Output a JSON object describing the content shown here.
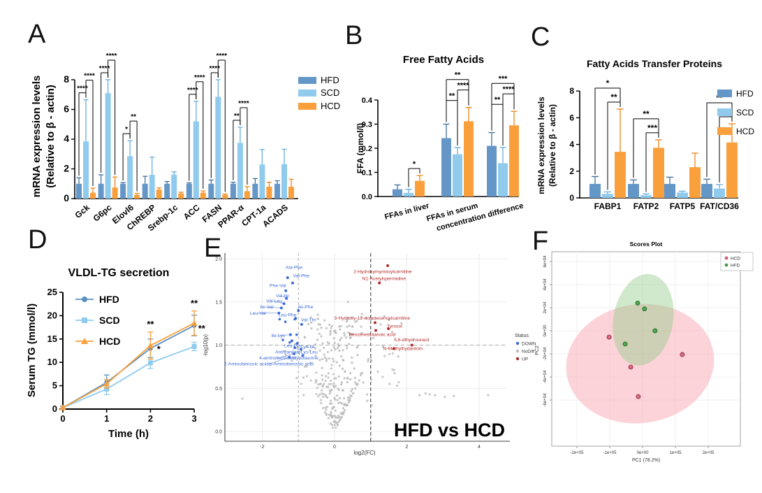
{
  "panels": {
    "a": "A",
    "b": "B",
    "c": "C",
    "d": "D",
    "e": "E",
    "f": "F"
  },
  "chart_data": [
    {
      "panel": "A",
      "type": "bar",
      "title": "",
      "ylabel_lines": [
        "mRNA expression levels",
        "(Relative to β - actin)"
      ],
      "ylim": [
        0,
        8
      ],
      "yticks": [
        "0",
        "2",
        "4",
        "6",
        "8"
      ],
      "ytick_values": [
        0,
        2,
        4,
        6,
        8
      ],
      "categories": [
        "Gck",
        "G6pc",
        "Elovl6",
        "ChREBP",
        "Srebp-1c",
        "ACC",
        "FASN",
        "PPAR-α",
        "CPT-1a",
        "ACADS"
      ],
      "series": [
        {
          "name": "HFD",
          "color": "#6497C7",
          "error_color": "#3E6F9E",
          "values": [
            1,
            1,
            1,
            1,
            1,
            1,
            1,
            1,
            1,
            1
          ],
          "errors": [
            0.4,
            0.6,
            0.08,
            0.5,
            0.15,
            0.06,
            0.25,
            0.1,
            0.35,
            0.2
          ]
        },
        {
          "name": "SCD",
          "color": "#90CBEE",
          "error_color": "#66AEDD",
          "values": [
            3.85,
            7.1,
            2.85,
            1.6,
            1.62,
            5.2,
            6.85,
            3.75,
            2.3,
            2.32
          ],
          "errors": [
            2.8,
            0.9,
            1.05,
            1.2,
            0.18,
            1.35,
            1.15,
            1.05,
            1.0,
            1.0
          ]
        },
        {
          "name": "HCD",
          "color": "#F9A03C",
          "error_color": "#EF8418",
          "values": [
            0.4,
            0.75,
            0.25,
            0.6,
            0.35,
            0.4,
            0.25,
            0.5,
            0.8,
            0.8
          ],
          "errors": [
            0.3,
            0.7,
            0.1,
            0.12,
            0.08,
            0.12,
            0.06,
            0.3,
            0.3,
            0.5
          ]
        }
      ],
      "legend": [
        "HFD",
        "SCD",
        "HCD"
      ],
      "significance": [
        {
          "cat": 0,
          "level": 1,
          "a": 0,
          "b": 1,
          "label": "****"
        },
        {
          "cat": 0,
          "level": 2,
          "a": 1,
          "b": 2,
          "label": "****"
        },
        {
          "cat": 1,
          "level": 1,
          "a": 0,
          "b": 1,
          "label": "****"
        },
        {
          "cat": 1,
          "level": 2,
          "a": 1,
          "b": 2,
          "label": "****"
        },
        {
          "cat": 2,
          "level": 1,
          "a": 0,
          "b": 1,
          "label": "*"
        },
        {
          "cat": 2,
          "level": 2,
          "a": 1,
          "b": 2,
          "label": "**"
        },
        {
          "cat": 5,
          "level": 1,
          "a": 0,
          "b": 1,
          "label": "****"
        },
        {
          "cat": 5,
          "level": 2,
          "a": 1,
          "b": 2,
          "label": "****"
        },
        {
          "cat": 6,
          "level": 1,
          "a": 0,
          "b": 1,
          "label": "****"
        },
        {
          "cat": 6,
          "level": 2,
          "a": 1,
          "b": 2,
          "label": "****"
        },
        {
          "cat": 7,
          "level": 1,
          "a": 0,
          "b": 1,
          "label": "**"
        },
        {
          "cat": 7,
          "level": 2,
          "a": 1,
          "b": 2,
          "label": "****"
        }
      ]
    },
    {
      "panel": "B",
      "type": "bar",
      "title": "Free Fatty Acids",
      "ylabel": "FFA (mmol/l)",
      "ylim": [
        0,
        0.4
      ],
      "yticks": [
        "0.0",
        "0.1",
        "0.2",
        "0.3",
        "0.4"
      ],
      "ytick_values": [
        0,
        0.1,
        0.2,
        0.3,
        0.4
      ],
      "categories": [
        "FFAs in liver",
        "FFAs in serum",
        "concentration difference"
      ],
      "series": [
        {
          "name": "HFD",
          "color": "#6497C7",
          "error_color": "#3E6F9E",
          "values": [
            0.03,
            0.242,
            0.21
          ],
          "errors": [
            0.018,
            0.058,
            0.055
          ]
        },
        {
          "name": "SCD",
          "color": "#90CBEE",
          "error_color": "#66AEDD",
          "values": [
            0.015,
            0.175,
            0.138
          ],
          "errors": [
            0.015,
            0.028,
            0.065
          ]
        },
        {
          "name": "HCD",
          "color": "#F9A03C",
          "error_color": "#EF8418",
          "values": [
            0.065,
            0.312,
            0.295
          ],
          "errors": [
            0.022,
            0.057,
            0.058
          ]
        }
      ],
      "significance": [
        {
          "cat": 0,
          "level": 1,
          "a": 1,
          "b": 2,
          "label": "*"
        },
        {
          "cat": 1,
          "level": 1,
          "a": 0,
          "b": 1,
          "label": "**"
        },
        {
          "cat": 1,
          "level": 2,
          "a": 1,
          "b": 2,
          "label": "****"
        },
        {
          "cat": 1,
          "level": 3,
          "a": 0,
          "b": 2,
          "label": "**"
        },
        {
          "cat": 2,
          "level": 1,
          "a": 0,
          "b": 1,
          "label": "**"
        },
        {
          "cat": 2,
          "level": 2,
          "a": 1,
          "b": 2,
          "label": "****"
        },
        {
          "cat": 2,
          "level": 3,
          "a": 0,
          "b": 2,
          "label": "***"
        }
      ]
    },
    {
      "panel": "C",
      "type": "bar",
      "title": "Fatty Acids Transfer Proteins",
      "ylabel_lines": [
        "mRNA expression levels",
        "(Relative to β - actin)"
      ],
      "ylim": [
        0,
        8
      ],
      "yticks": [
        "0",
        "2",
        "4",
        "6",
        "8"
      ],
      "ytick_values": [
        0,
        2,
        4,
        6,
        8
      ],
      "categories": [
        "FABP1",
        "FATP2",
        "FATP5",
        "FAT/CD36"
      ],
      "series": [
        {
          "name": "HFD",
          "color": "#6497C7",
          "error_color": "#3E6F9E",
          "values": [
            1.05,
            1.05,
            1.05,
            1.05
          ],
          "errors": [
            0.55,
            0.3,
            0.5,
            0.35
          ]
        },
        {
          "name": "SCD",
          "color": "#90CBEE",
          "error_color": "#66AEDD",
          "values": [
            0.3,
            0.2,
            0.4,
            0.7
          ],
          "errors": [
            0.15,
            0.1,
            0.1,
            0.3
          ]
        },
        {
          "name": "HCD",
          "color": "#F9A03C",
          "error_color": "#EF8418",
          "values": [
            3.45,
            3.75,
            2.3,
            4.15
          ],
          "errors": [
            3.2,
            0.6,
            1.05,
            1.4
          ]
        }
      ],
      "legend": [
        "HFD",
        "SCD",
        "HCD"
      ],
      "significance": [
        {
          "cat": 0,
          "level": 1,
          "a": 1,
          "b": 2,
          "label": "**"
        },
        {
          "cat": 0,
          "level": 2,
          "a": 0,
          "b": 2,
          "label": "*"
        },
        {
          "cat": 1,
          "level": 1,
          "a": 1,
          "b": 2,
          "label": "***"
        },
        {
          "cat": 1,
          "level": 2,
          "a": 0,
          "b": 2,
          "label": "**"
        },
        {
          "cat": 3,
          "level": 1,
          "a": 1,
          "b": 2,
          "label": "***"
        },
        {
          "cat": 3,
          "level": 2,
          "a": 0,
          "b": 2,
          "label": "**"
        }
      ]
    },
    {
      "panel": "D",
      "type": "line",
      "title": "VLDL-TG secretion",
      "xlabel": "Time (h)",
      "ylabel": "Serum TG (mmol/l)",
      "x": [
        0,
        1,
        2,
        3
      ],
      "xticks": [
        "0",
        "1",
        "2",
        "3"
      ],
      "ylim": [
        0,
        25
      ],
      "yticks": [
        "0",
        "5",
        "10",
        "15",
        "20",
        "25"
      ],
      "ytick_values": [
        0,
        5,
        10,
        15,
        20,
        25
      ],
      "series": [
        {
          "name": "HFD",
          "marker": "circle",
          "color": "#5B90C2",
          "values": [
            0.3,
            5.7,
            13.0,
            17.9
          ],
          "errors": [
            0.3,
            1.6,
            2.0,
            2.2
          ]
        },
        {
          "name": "SCD",
          "marker": "square",
          "color": "#8FCBEF",
          "values": [
            0.3,
            4.3,
            9.9,
            13.4
          ],
          "errors": [
            0.3,
            1.2,
            1.2,
            0.9
          ]
        },
        {
          "name": "HCD",
          "marker": "triangle",
          "color": "#F9A03C",
          "values": [
            0.3,
            5.4,
            13.6,
            18.4
          ],
          "errors": [
            0.3,
            0.9,
            2.9,
            2.6
          ]
        }
      ],
      "annotations": [
        {
          "x": 2,
          "y": 17.5,
          "label": "**"
        },
        {
          "x": 2.19,
          "y": 12.2,
          "label": "*"
        },
        {
          "x": 3,
          "y": 22.0,
          "label": "**"
        },
        {
          "x": 3.17,
          "y": 16.6,
          "label": "**"
        }
      ]
    },
    {
      "panel": "E",
      "type": "scatter",
      "subtype": "volcano",
      "xlabel": "log2(FC)",
      "ylabel": "-log10(p)",
      "xticks": [
        "-2",
        "0",
        "2",
        "4"
      ],
      "xtick_values": [
        -2,
        0,
        2,
        4
      ],
      "yticks": [
        "0.0",
        "0.5",
        "1.0",
        "1.5",
        "2.0"
      ],
      "ytick_values": [
        0,
        0.5,
        1,
        1.5,
        2
      ],
      "thresholds": {
        "v_gray": -1,
        "v_black": 1,
        "h_gray": 1.0
      },
      "watermark": "HFD vs HCD",
      "down_color": "#3D6BD8",
      "up_color": "#B22A2A",
      "nodiff_color": "#BCBCBC",
      "legend": {
        "title": "Status",
        "items": [
          {
            "label": "DOWN",
            "color": "#3D6BD8"
          },
          {
            "label": "NoDiff",
            "color": "#BCBCBC"
          },
          {
            "label": "UP",
            "color": "#B22A2A"
          }
        ]
      },
      "down_points": [
        {
          "label": "Ala-Phe",
          "x": -1.3,
          "y": 1.78,
          "lx": -1.12,
          "ly": 1.9
        },
        {
          "label": "Val-Phe",
          "x": -1.16,
          "y": 1.72,
          "lx": -0.92,
          "ly": 1.8
        },
        {
          "label": "Phe-Val",
          "x": -1.35,
          "y": 1.63,
          "lx": -1.57,
          "ly": 1.69
        },
        {
          "label": "Val-Ile",
          "x": -1.33,
          "y": 1.54,
          "lx": -1.44,
          "ly": 1.57,
          "ld": 1
        },
        {
          "label": "Val-Leu",
          "x": -1.4,
          "y": 1.48,
          "lx": -1.67,
          "ly": 1.51,
          "ld": 1
        },
        {
          "label": "Ile-Val",
          "x": -1.47,
          "y": 1.43,
          "lx": -1.88,
          "ly": 1.44,
          "ld": 1
        },
        {
          "label": "Leu-Val",
          "x": -1.54,
          "y": 1.37,
          "lx": -2.12,
          "ly": 1.37,
          "ld": 1
        },
        {
          "label": "Ile-Phe",
          "x": -1.0,
          "y": 1.4,
          "lx": -0.8,
          "ly": 1.44
        },
        {
          "label": "Leu-Phe",
          "x": -1.08,
          "y": 1.31,
          "lx": -1.3,
          "ly": 1.35
        },
        {
          "label": "Val-Thr",
          "x": -0.91,
          "y": 1.24,
          "lx": -0.72,
          "ly": 1.29
        },
        {
          "label": "Ile-Lys",
          "x": -1.22,
          "y": 1.12,
          "lx": -1.56,
          "ly": 1.11,
          "ld": 1
        },
        {
          "label": "Leu-Lys",
          "x": -1.18,
          "y": 1.05,
          "lx": -1.16,
          "ly": 0.99
        },
        {
          "label": "Lys-Ile",
          "x": -1.03,
          "y": 1.02,
          "lx": -0.74,
          "ly": 0.98
        },
        {
          "label": "Anthranilate",
          "x": -1.1,
          "y": 0.97,
          "lx": -1.29,
          "ly": 0.92
        },
        {
          "label": "Lys-Leu",
          "x": -0.93,
          "y": 0.95,
          "lx": -0.7,
          "ly": 0.92
        },
        {
          "label": "4-aminobenzoate",
          "x": -1.12,
          "y": 0.9,
          "lx": -1.58,
          "ly": 0.85,
          "ld": 1
        },
        {
          "label": "Hypotaurine",
          "x": -0.88,
          "y": 0.88,
          "lx": -0.8,
          "ly": 0.85
        },
        {
          "label": "2-Aminobenzoic acid/p-Aminobenzoic acid",
          "x": -1.25,
          "y": 0.86,
          "lx": -1.82,
          "ly": 0.78,
          "ld": 1
        }
      ],
      "extra_down_points": [
        [
          -1.52,
          1.3
        ],
        [
          -1.36,
          1.27
        ],
        [
          -1.1,
          1.3
        ],
        [
          -1.43,
          1.06
        ],
        [
          -1.24,
          1.03
        ],
        [
          -1.05,
          1.12
        ]
      ],
      "up_points": [
        {
          "label": "2-Hydroxymyristoylcarnitine",
          "x": 1.47,
          "y": 1.92,
          "lx": 1.33,
          "ly": 1.85
        },
        {
          "label": "N1-Acetylspermidine",
          "x": 1.24,
          "y": 1.72,
          "lx": 1.37,
          "ly": 1.77
        },
        {
          "label": "3-Hydroxy-12-octadecenoylcarnitine",
          "x": 1.12,
          "y": 1.26,
          "lx": 1.04,
          "ly": 1.31
        },
        {
          "label": "Tyrosol",
          "x": 1.49,
          "y": 1.19,
          "lx": 1.66,
          "ly": 1.22
        },
        {
          "label": "Benzenebutanoic acid",
          "x": 1.14,
          "y": 1.17,
          "lx": 1.04,
          "ly": 1.12
        },
        {
          "label": "5,6-dihydrouracil",
          "x": 2.14,
          "y": 1.0,
          "lx": 2.13,
          "ly": 1.06
        },
        {
          "label": "N-Methylhydantoin",
          "x": 1.64,
          "y": 0.96,
          "lx": 1.89,
          "ly": 0.96
        }
      ],
      "outlier_points": [
        [
          -2.9,
          0.38
        ],
        [
          2.35,
          0.42
        ],
        [
          2.52,
          0.44
        ],
        [
          2.63,
          0.43
        ],
        [
          2.78,
          0.42
        ],
        [
          3.05,
          0.4
        ],
        [
          3.3,
          0.41
        ],
        [
          4.25,
          0.42
        ]
      ]
    },
    {
      "panel": "F",
      "type": "scatter",
      "subtype": "pca_scores",
      "title": "Scores Plot",
      "xlabel": "PC1 (78.2%)",
      "ylabel": "PC2",
      "xticks": [
        "-2e+05",
        "-1e+05",
        "0e+00",
        "1e+05",
        "2e+05"
      ],
      "xtick_values": [
        -200000,
        -100000,
        0,
        100000,
        200000
      ],
      "yticks": [
        "6e+04",
        "4e+04",
        "2e+04",
        "0e+00",
        "-2e+04",
        "-4e+04",
        "-6e+04"
      ],
      "ytick_values": [
        60000,
        40000,
        20000,
        0,
        -20000,
        -40000,
        -60000
      ],
      "groups": [
        {
          "name": "HCD",
          "point_color": "#D96C7F",
          "point_stroke": "#8F2F44",
          "fill": "rgba(247,168,180,0.50)",
          "ellipse": {
            "cx": -7500,
            "cy": -28500,
            "rx": 226000,
            "ry": 51500,
            "rot": -8
          },
          "points": [
            [
              -102000,
              -5500
            ],
            [
              121000,
              -20600
            ],
            [
              -36000,
              -31500
            ],
            [
              -13000,
              -57000
            ]
          ]
        },
        {
          "name": "HFD",
          "point_color": "#4CA64C",
          "point_stroke": "#2F6B2F",
          "fill": "rgba(150,205,140,0.45)",
          "ellipse": {
            "cx": 2000,
            "cy": 9500,
            "rx": 91000,
            "ry": 40000,
            "rot": 10
          },
          "points": [
            [
              -15000,
              24000
            ],
            [
              6000,
              19000
            ],
            [
              38000,
              0
            ],
            [
              -53000,
              -11500
            ]
          ]
        }
      ]
    }
  ]
}
